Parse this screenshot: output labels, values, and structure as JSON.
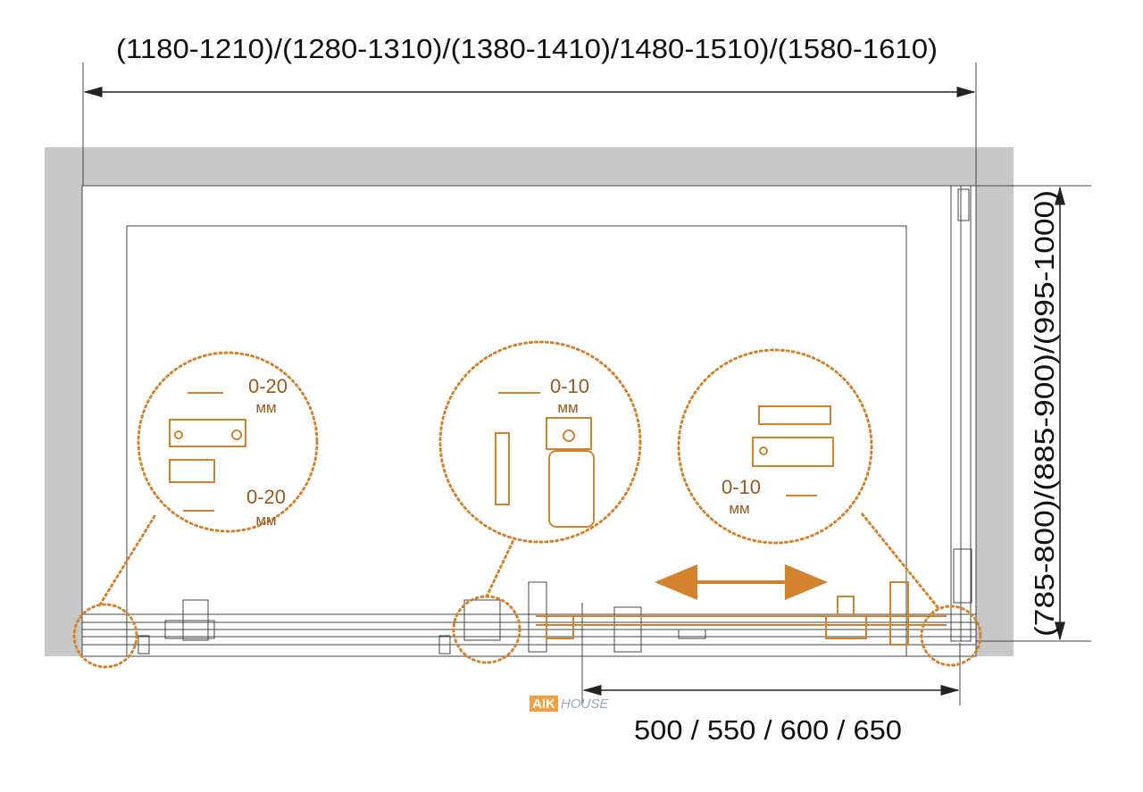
{
  "dimensions": {
    "width": "(1180-1210)/(1280-1310)/(1380-1410)/1480-1510)/(1580-1610)",
    "depth": "(785-800)/(885-900)/(995-1000)",
    "door": "500 / 550 / 600 / 650"
  },
  "details": [
    {
      "labels": [
        {
          "value": "0-20",
          "unit": "мм"
        },
        {
          "value": "0-20",
          "unit": "мм"
        }
      ]
    },
    {
      "labels": [
        {
          "value": "0-10",
          "unit": "мм"
        }
      ]
    },
    {
      "labels": [
        {
          "value": "0-10",
          "unit": "мм"
        }
      ]
    }
  ],
  "watermark": {
    "brand": "AIK",
    "suffix": "HOUSE"
  }
}
